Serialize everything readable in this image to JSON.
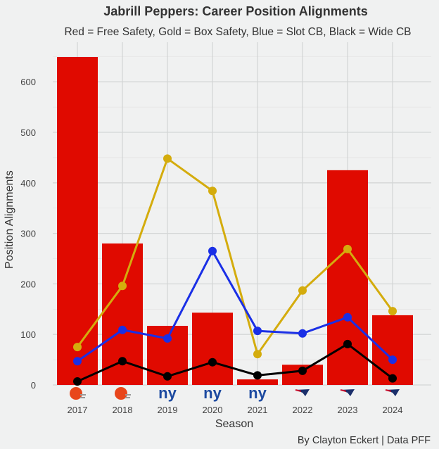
{
  "chart_data": {
    "type": "bar+line",
    "title": "Jabrill Peppers: Career Position Alignments",
    "subtitle": "Red = Free Safety, Gold = Box Safety, Blue = Slot CB, Black = Wide CB",
    "xlabel": "Season",
    "ylabel": "Position Alignments",
    "caption": "By Clayton Eckert | Data PFF",
    "categories": [
      "2017",
      "2018",
      "2019",
      "2020",
      "2021",
      "2022",
      "2023",
      "2024"
    ],
    "team_icons": [
      "browns-helmet-icon",
      "browns-helmet-icon",
      "giants-ny-icon",
      "giants-ny-icon",
      "giants-ny-icon",
      "patriots-logo-icon",
      "patriots-logo-icon",
      "patriots-logo-icon"
    ],
    "ylim": [
      0,
      680
    ],
    "yticks": [
      0,
      100,
      200,
      300,
      400,
      500,
      600
    ],
    "grid": true,
    "series": [
      {
        "name": "Free Safety",
        "kind": "bar",
        "color": "#e00a00",
        "values": [
          649,
          280,
          117,
          143,
          11,
          40,
          425,
          138
        ]
      },
      {
        "name": "Box Safety",
        "kind": "line",
        "color": "#d4ac0d",
        "values": [
          75,
          196,
          448,
          384,
          61,
          187,
          269,
          146
        ]
      },
      {
        "name": "Slot CB",
        "kind": "line",
        "color": "#1a2fe6",
        "values": [
          47,
          109,
          92,
          265,
          107,
          102,
          134,
          50
        ]
      },
      {
        "name": "Wide CB",
        "kind": "line",
        "color": "#000000",
        "values": [
          7,
          47,
          17,
          45,
          19,
          28,
          81,
          13
        ]
      }
    ]
  }
}
